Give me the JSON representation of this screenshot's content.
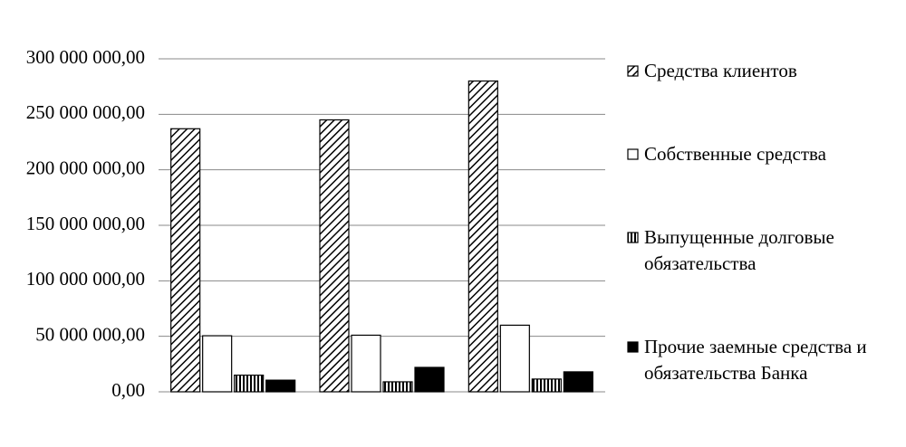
{
  "chart_data": {
    "type": "bar",
    "categories": [
      null,
      null,
      null
    ],
    "series": [
      {
        "name": "Средства клиентов",
        "color": "#000000",
        "pattern": "diagonal",
        "values": [
          237000000,
          245000000,
          280000000
        ]
      },
      {
        "name": "Собственные средства",
        "color": "#ffffff",
        "pattern": null,
        "values": [
          50500000,
          51000000,
          60000000
        ]
      },
      {
        "name": "Выпущенные долговые обязательства",
        "color": "#000000",
        "pattern": "vertical",
        "values": [
          15000000,
          9000000,
          11500000
        ]
      },
      {
        "name": "Прочие заемные средства и обязательства Банка",
        "color": "#000000",
        "pattern": null,
        "values": [
          10500000,
          22000000,
          18000000
        ]
      }
    ],
    "ylim": [
      0,
      300000000
    ],
    "yticks": [
      {
        "value": 0,
        "label": "0,00"
      },
      {
        "value": 50000000,
        "label": "50 000 000,00"
      },
      {
        "value": 100000000,
        "label": "100 000 000,00"
      },
      {
        "value": 150000000,
        "label": "150 000 000,00"
      },
      {
        "value": 200000000,
        "label": "200 000 000,00"
      },
      {
        "value": 250000000,
        "label": "250 000 000,00"
      },
      {
        "value": 300000000,
        "label": "300 000 000,00"
      }
    ],
    "grid": true,
    "legend": "right"
  }
}
